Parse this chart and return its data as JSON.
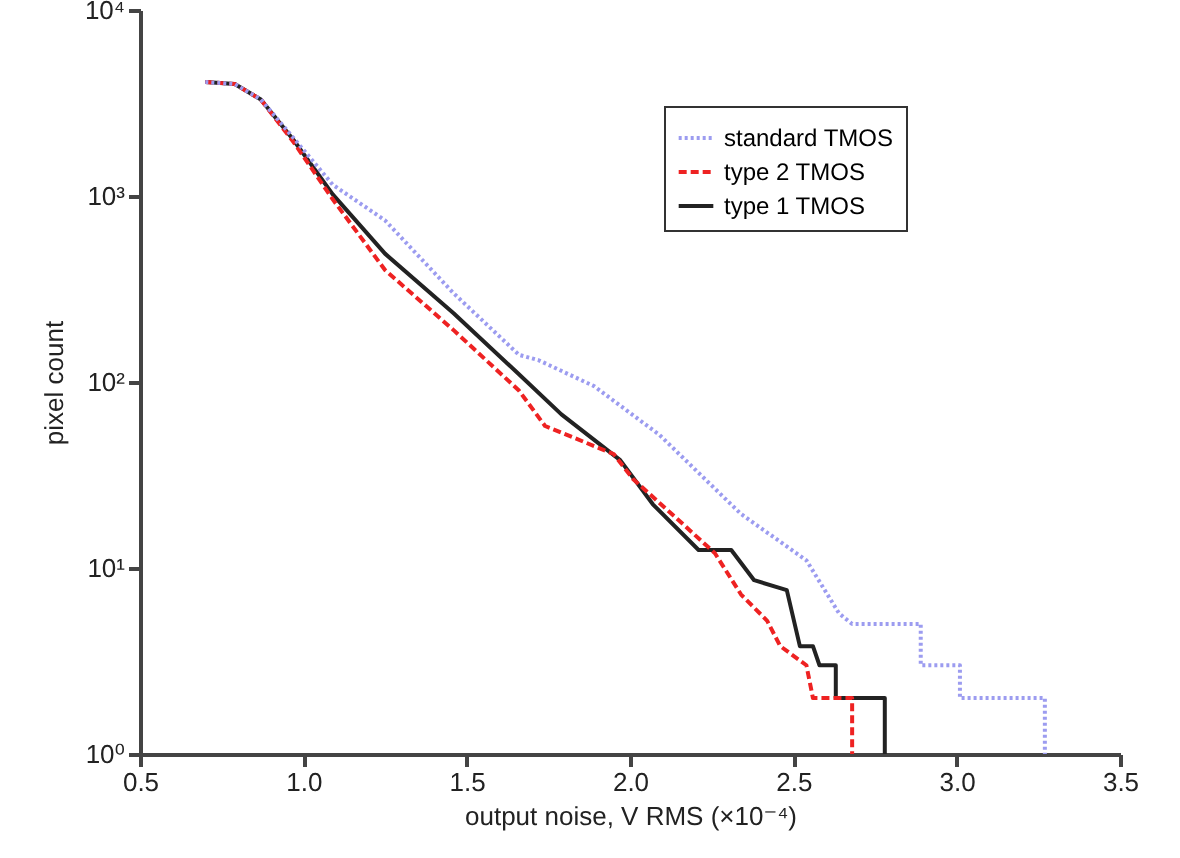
{
  "chart_data": {
    "type": "line",
    "xlabel": "output noise, V RMS (×10⁻⁴)",
    "ylabel": "pixel count",
    "log": "y",
    "xlim": [
      0.5,
      3.5
    ],
    "xticks": [
      {
        "value": 0.5,
        "label": "0.5"
      },
      {
        "value": 1,
        "label": "1.0"
      },
      {
        "value": 1.5,
        "label": "1.5"
      },
      {
        "value": 2,
        "label": "2.0"
      },
      {
        "value": 2.5,
        "label": "2.5"
      },
      {
        "value": 3,
        "label": "3.0"
      },
      {
        "value": 3.5,
        "label": "3.5"
      }
    ],
    "ylim": [
      1,
      10000
    ],
    "yticks": [
      {
        "value": 1,
        "label": "10⁰"
      },
      {
        "value": 10,
        "label": "10¹"
      },
      {
        "value": 100,
        "label": "10²"
      },
      {
        "value": 1000,
        "label": "10³"
      },
      {
        "value": 10000,
        "label": "10⁴"
      }
    ],
    "grid": false,
    "legend": "top right",
    "marker": "none",
    "series": [
      {
        "name": "standard TMOS",
        "color": "#9c9cf0",
        "line_style": "dotted",
        "x": [
          0.7,
          0.79,
          0.87,
          0.97,
          1.09,
          1.25,
          1.46,
          1.66,
          1.72,
          1.89,
          2.09,
          2.34,
          2.54,
          2.64,
          2.68,
          2.89,
          2.89,
          3.01,
          3.01,
          3.27,
          3.27
        ],
        "values": [
          4100,
          4000,
          3300,
          2050,
          1150,
          740,
          300,
          140,
          131,
          95,
          52,
          19.5,
          11,
          5.7,
          5,
          5,
          3,
          3,
          2,
          2,
          1
        ]
      },
      {
        "name": "type 2 TMOS",
        "color": "#ee2222",
        "line_style": "dashed",
        "x": [
          0.7,
          0.79,
          0.87,
          0.97,
          1.09,
          1.25,
          1.46,
          1.66,
          1.74,
          1.95,
          2.01,
          2.15,
          2.26,
          2.34,
          2.42,
          2.46,
          2.54,
          2.56,
          2.68,
          2.68
        ],
        "values": [
          4100,
          4000,
          3300,
          1950,
          960,
          400,
          190,
          90,
          58,
          41,
          30,
          18,
          12,
          7.2,
          5.2,
          3.8,
          3,
          2,
          2,
          1
        ]
      },
      {
        "name": "type 1 TMOS",
        "color": "#222222",
        "line_style": "solid",
        "x": [
          0.7,
          0.79,
          0.87,
          0.97,
          1.09,
          1.25,
          1.46,
          1.66,
          1.79,
          1.97,
          2.07,
          2.21,
          2.31,
          2.38,
          2.48,
          2.52,
          2.56,
          2.58,
          2.63,
          2.63,
          2.78,
          2.78
        ],
        "values": [
          4100,
          4000,
          3300,
          2000,
          1020,
          490,
          234,
          110,
          67,
          38,
          22,
          12.5,
          12.5,
          8.6,
          7.6,
          3.8,
          3.8,
          3,
          3,
          2,
          2,
          1
        ]
      }
    ]
  }
}
